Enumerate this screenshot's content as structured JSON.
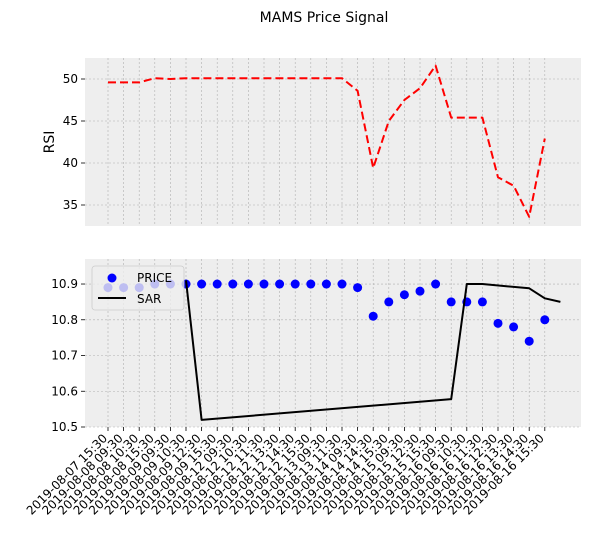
{
  "chart_data": {
    "title": "MAMS Price Signal",
    "x": [
      "2019-08-07 15:30",
      "2019-08-08 09:30",
      "2019-08-08 10:30",
      "2019-08-08 15:30",
      "2019-08-09 09:30",
      "2019-08-09 10:30",
      "2019-08-09 12:30",
      "2019-08-09 15:30",
      "2019-08-12 09:30",
      "2019-08-12 10:30",
      "2019-08-12 11:30",
      "2019-08-12 13:30",
      "2019-08-12 14:30",
      "2019-08-12 15:30",
      "2019-08-13 09:30",
      "2019-08-13 11:30",
      "2019-08-14 09:30",
      "2019-08-14 14:30",
      "2019-08-14 15:30",
      "2019-08-15 09:30",
      "2019-08-15 12:30",
      "2019-08-15 15:30",
      "2019-08-16 09:30",
      "2019-08-16 10:30",
      "2019-08-16 11:30",
      "2019-08-16 12:30",
      "2019-08-16 13:30",
      "2019-08-16 14:30",
      "2019-08-16 15:30"
    ],
    "panels": [
      {
        "type": "line",
        "ylabel": "RSI",
        "ylim": [
          32.5,
          52.5
        ],
        "yticks": [
          35,
          40,
          45,
          50
        ],
        "grid": true,
        "series": [
          {
            "style": "dashed",
            "color": "#ff0000",
            "values": [
              49.6,
              49.6,
              49.6,
              50.1,
              50.0,
              50.1,
              50.1,
              50.1,
              50.1,
              50.1,
              50.1,
              50.1,
              50.1,
              50.1,
              50.1,
              50.1,
              48.6,
              39.4,
              45.0,
              47.5,
              48.9,
              51.6,
              45.4,
              45.4,
              45.4,
              38.3,
              37.3,
              33.6,
              42.9
            ]
          }
        ]
      },
      {
        "type": "line",
        "ylabel": "",
        "ylim": [
          10.5,
          10.97
        ],
        "yticks": [
          10.5,
          10.6,
          10.7,
          10.8,
          10.9
        ],
        "grid": true,
        "legend_position": "top-left",
        "series": [
          {
            "name": "PRICE",
            "style": "markers",
            "color": "#0000ff",
            "values": [
              10.89,
              10.89,
              10.89,
              10.9,
              10.9,
              10.9,
              10.9,
              10.9,
              10.9,
              10.9,
              10.9,
              10.9,
              10.9,
              10.9,
              10.9,
              10.9,
              10.89,
              10.81,
              10.85,
              10.87,
              10.88,
              10.9,
              10.85,
              10.85,
              10.85,
              10.79,
              10.78,
              10.74,
              10.8
            ]
          },
          {
            "name": "SAR",
            "style": "solid",
            "color": "#000000",
            "points": [
              [
                5,
                10.91
              ],
              [
                6,
                10.52
              ],
              [
                22,
                10.578
              ],
              [
                23,
                10.9
              ],
              [
                24,
                10.9
              ],
              [
                27,
                10.888
              ],
              [
                28,
                10.86
              ],
              [
                29,
                10.85
              ]
            ]
          }
        ]
      }
    ]
  }
}
